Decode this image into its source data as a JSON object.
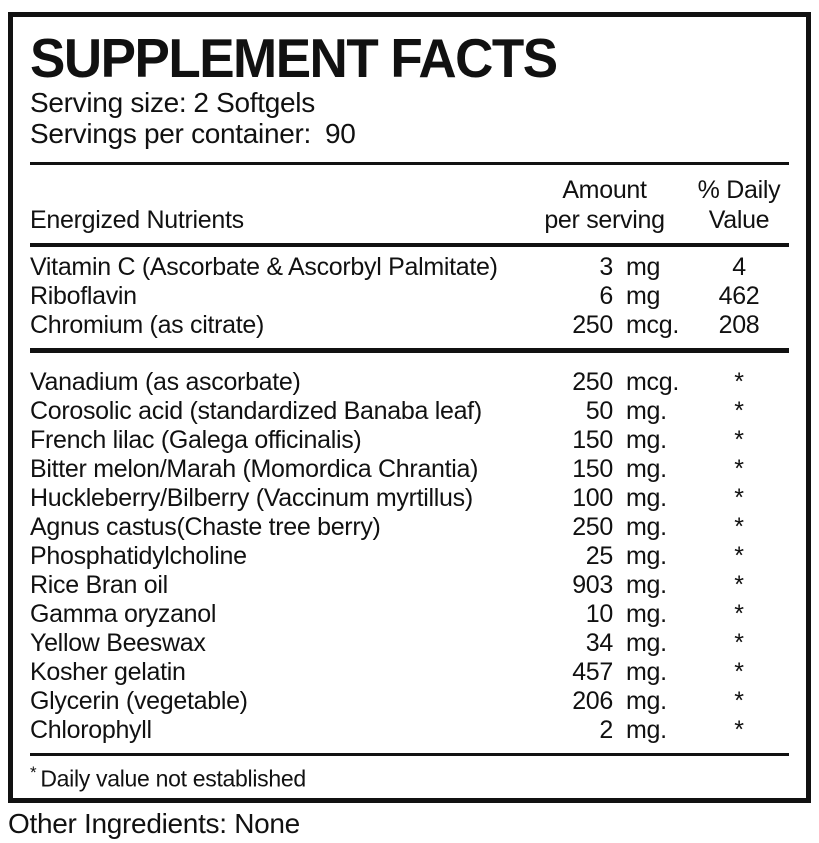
{
  "title": "SUPPLEMENT FACTS",
  "serving": {
    "size_label": "Serving size:",
    "size_value": "2 Softgels",
    "container_label": "Servings per container:",
    "container_value": "90"
  },
  "table": {
    "header": {
      "nutrients": "Energized Nutrients",
      "amount": "Amount\nper serving",
      "daily_value": "% Daily\nValue"
    },
    "section1": {
      "rows": [
        {
          "name": "Vitamin C (Ascorbate & Ascorbyl Palmitate)",
          "amount": "3",
          "unit": "mg",
          "dv": "4"
        },
        {
          "name": "Riboflavin",
          "amount": "6",
          "unit": "mg",
          "dv": "462"
        },
        {
          "name": "Chromium (as citrate)",
          "amount": "250",
          "unit": "mcg.",
          "dv": "208"
        }
      ]
    },
    "section2": {
      "rows": [
        {
          "name": "Vanadium (as ascorbate)",
          "amount": "250",
          "unit": "mcg.",
          "dv": "*"
        },
        {
          "name": "Corosolic acid (standardized Banaba leaf)",
          "amount": "50",
          "unit": "mg.",
          "dv": "*"
        },
        {
          "name": "French lilac (Galega officinalis)",
          "amount": "150",
          "unit": "mg.",
          "dv": "*"
        },
        {
          "name": "Bitter melon/Marah (Momordica Chrantia)",
          "amount": "150",
          "unit": "mg.",
          "dv": "*"
        },
        {
          "name": "Huckleberry/Bilberry (Vaccinum myrtillus)",
          "amount": "100",
          "unit": "mg.",
          "dv": "*"
        },
        {
          "name": "Agnus castus(Chaste tree berry)",
          "amount": "250",
          "unit": "mg.",
          "dv": "*"
        },
        {
          "name": "Phosphatidylcholine",
          "amount": "25",
          "unit": "mg.",
          "dv": "*"
        },
        {
          "name": "Rice Bran oil",
          "amount": "903",
          "unit": "mg.",
          "dv": "*"
        },
        {
          "name": "Gamma oryzanol",
          "amount": "10",
          "unit": "mg.",
          "dv": "*"
        },
        {
          "name": "Yellow Beeswax",
          "amount": "34",
          "unit": "mg.",
          "dv": "*"
        },
        {
          "name": "Kosher gelatin",
          "amount": "457",
          "unit": "mg.",
          "dv": "*"
        },
        {
          "name": "Glycerin (vegetable)",
          "amount": "206",
          "unit": "mg.",
          "dv": "*"
        },
        {
          "name": "Chlorophyll",
          "amount": "2",
          "unit": "mg.",
          "dv": "*"
        }
      ]
    }
  },
  "footnote": {
    "asterisk": "*",
    "text": "Daily value not established"
  },
  "other_ingredients": "Other Ingredients: None",
  "colors": {
    "text": "#111111",
    "border": "#111111",
    "background": "#ffffff"
  }
}
